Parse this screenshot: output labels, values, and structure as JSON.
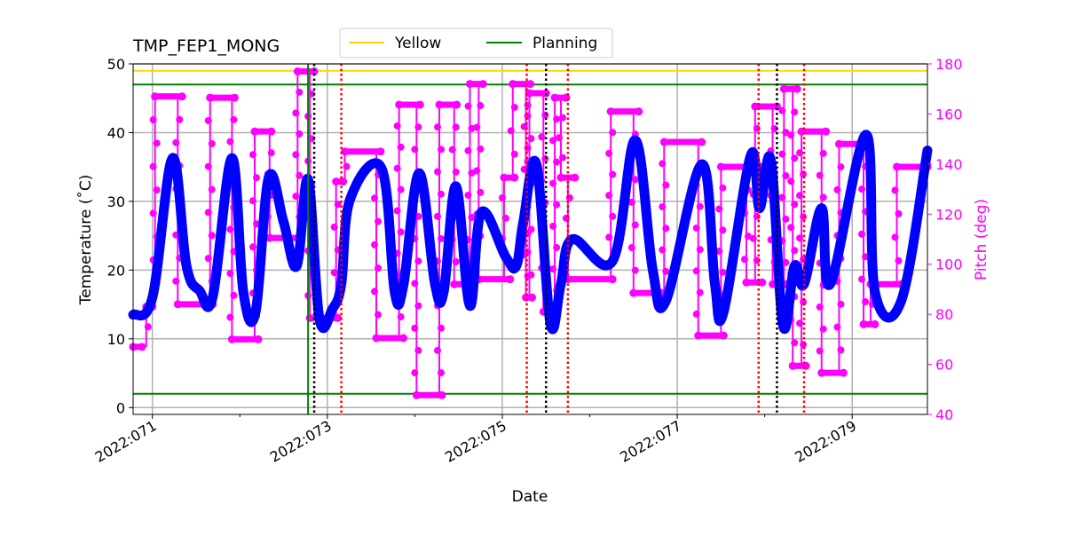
{
  "chart_data": {
    "type": "line",
    "title": "TMP_FEP1_MONG",
    "xlabel": "Date",
    "ylabel": "Temperature ($^\\circ$C)",
    "ylabel_display": "Temperature (˚C)",
    "y2label": "Pitch (deg)",
    "xlim": [
      70.78,
      79.86
    ],
    "ylim": [
      -1,
      50
    ],
    "y2lim": [
      40,
      180
    ],
    "x_ticks": [
      71,
      73,
      75,
      77,
      79
    ],
    "x_tick_labels": [
      "2022:071",
      "2022:073",
      "2022:075",
      "2022:077",
      "2022:079"
    ],
    "y_ticks": [
      0,
      10,
      20,
      30,
      40,
      50
    ],
    "y2_ticks": [
      40,
      60,
      80,
      100,
      120,
      140,
      160,
      180
    ],
    "grid": true,
    "legend": {
      "placement": "top-center",
      "entries": [
        {
          "name": "Yellow",
          "color": "#ffd700"
        },
        {
          "name": "Planning",
          "color": "#008000"
        }
      ]
    },
    "limits": {
      "yellow": [
        49
      ],
      "planning": [
        47,
        2
      ]
    },
    "colors": {
      "temperature": "#0000ff",
      "pitch": "#ff00ff",
      "y2axis": "#ff00ff"
    },
    "vertical_lines": {
      "green_solid": [
        72.78
      ],
      "black_dotted": [
        72.85,
        75.5,
        78.14
      ],
      "red_dotted": [
        73.16,
        75.28,
        75.75,
        77.93,
        78.45
      ]
    },
    "temperature": {
      "x": [
        70.78,
        71.0,
        71.23,
        71.39,
        71.54,
        71.69,
        71.91,
        72.04,
        72.18,
        72.33,
        72.5,
        72.65,
        72.78,
        72.91,
        73.06,
        73.16,
        73.26,
        73.62,
        73.77,
        73.87,
        74.05,
        74.23,
        74.33,
        74.47,
        74.63,
        74.76,
        75.04,
        75.16,
        75.24,
        75.39,
        75.55,
        75.67,
        75.8,
        76.26,
        76.52,
        76.72,
        76.87,
        77.28,
        77.43,
        77.53,
        77.84,
        77.94,
        78.07,
        78.21,
        78.34,
        78.45,
        78.65,
        78.75,
        79.16,
        79.26,
        79.56,
        79.86
      ],
      "y": [
        13.5,
        16,
        36.3,
        20.6,
        17,
        16.1,
        36.3,
        16.8,
        13.9,
        33.5,
        27,
        20.6,
        33.2,
        12.9,
        14.4,
        18,
        30.3,
        34.8,
        16.8,
        17.8,
        34.1,
        18,
        16.8,
        32.2,
        14.8,
        28.4,
        21.9,
        20.6,
        27,
        35.4,
        12.2,
        18,
        24.5,
        21.3,
        38.9,
        20,
        15.5,
        35.4,
        18,
        13.9,
        36.7,
        29,
        36,
        11.9,
        20.6,
        18,
        29,
        18,
        39.7,
        16.8,
        15.5,
        37.4
      ]
    },
    "pitch_steps": [
      [
        70.78,
        70.88,
        67
      ],
      [
        70.93,
        71.0,
        83
      ],
      [
        71.03,
        71.34,
        167
      ],
      [
        71.29,
        71.69,
        84
      ],
      [
        71.66,
        71.94,
        166.5
      ],
      [
        71.91,
        72.21,
        70
      ],
      [
        72.17,
        72.36,
        153
      ],
      [
        72.34,
        72.69,
        110.5
      ],
      [
        72.66,
        72.85,
        177
      ],
      [
        72.8,
        73.12,
        78.5
      ],
      [
        73.1,
        73.18,
        133
      ],
      [
        73.2,
        73.61,
        145
      ],
      [
        73.56,
        73.87,
        70.5
      ],
      [
        73.82,
        74.06,
        163.7
      ],
      [
        74.02,
        74.31,
        47.7
      ],
      [
        74.28,
        74.48,
        163.7
      ],
      [
        74.45,
        74.68,
        92
      ],
      [
        74.63,
        74.78,
        172
      ],
      [
        74.73,
        75.09,
        94
      ],
      [
        75.02,
        75.14,
        134.6
      ],
      [
        75.12,
        75.32,
        172
      ],
      [
        75.27,
        75.34,
        86.7
      ],
      [
        75.31,
        75.5,
        168.3
      ],
      [
        75.47,
        75.63,
        81
      ],
      [
        75.6,
        75.73,
        166.5
      ],
      [
        75.67,
        75.83,
        134.6
      ],
      [
        75.75,
        76.26,
        94
      ],
      [
        76.24,
        76.56,
        161
      ],
      [
        76.5,
        76.82,
        88.5
      ],
      [
        76.85,
        77.28,
        148.8
      ],
      [
        77.24,
        77.53,
        71.5
      ],
      [
        77.5,
        77.94,
        138.9
      ],
      [
        77.79,
        77.97,
        92.7
      ],
      [
        77.89,
        78.14,
        163
      ],
      [
        78.09,
        78.24,
        92
      ],
      [
        78.22,
        78.37,
        170
      ],
      [
        78.32,
        78.47,
        59.4
      ],
      [
        78.42,
        78.7,
        153
      ],
      [
        78.65,
        78.9,
        56.6
      ],
      [
        78.85,
        79.16,
        148
      ],
      [
        79.13,
        79.26,
        76
      ],
      [
        79.21,
        79.56,
        92
      ],
      [
        79.51,
        79.86,
        138.9
      ]
    ]
  }
}
